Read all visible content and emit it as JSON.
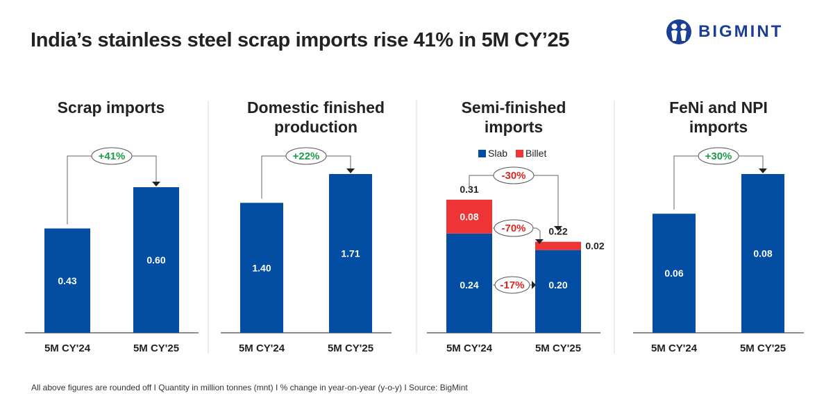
{
  "header": {
    "title": "India’s stainless steel scrap imports rise 41% in 5M CY’25",
    "brand": "BIGMINT"
  },
  "footer": "All above figures are rounded off  I  Quantity in million tonnes (mnt)  I  % change in year-on-year (y-o-y)  I  Source: BigMint",
  "colors": {
    "slab": "#034ea2",
    "billet": "#ee3434",
    "positive": "#1d9b4b",
    "negative": "#e02424"
  },
  "chart_data": [
    {
      "type": "bar",
      "title": "Scrap imports",
      "categories": [
        "5M CY'24",
        "5M CY'25"
      ],
      "values": [
        0.43,
        0.6
      ],
      "labels": [
        "0.43",
        "0.60"
      ],
      "change": "+41%",
      "unit": "mnt"
    },
    {
      "type": "bar",
      "title": "Domestic finished production",
      "title_lines": [
        "Domestic finished",
        "production"
      ],
      "categories": [
        "5M CY'24",
        "5M CY'25"
      ],
      "values": [
        1.4,
        1.71
      ],
      "labels": [
        "1.40",
        "1.71"
      ],
      "change": "+22%",
      "unit": "mnt"
    },
    {
      "type": "bar",
      "stacked": true,
      "title": "Semi-finished imports",
      "title_lines": [
        "Semi-finished",
        "imports"
      ],
      "categories": [
        "5M CY'24",
        "5M CY'25"
      ],
      "legend": [
        "Slab",
        "Billet"
      ],
      "series": [
        {
          "name": "Slab",
          "values": [
            0.24,
            0.2
          ],
          "labels": [
            "0.24",
            "0.20"
          ],
          "change": "-17%"
        },
        {
          "name": "Billet",
          "values": [
            0.08,
            0.02
          ],
          "labels": [
            "0.08",
            "0.02"
          ],
          "change": "-70%"
        }
      ],
      "totals": [
        0.31,
        0.22
      ],
      "total_labels": [
        "0.31",
        "0.22"
      ],
      "change": "-30%",
      "unit": "mnt"
    },
    {
      "type": "bar",
      "title": "FeNi and NPI imports",
      "title_lines": [
        "FeNi and NPI",
        "imports"
      ],
      "categories": [
        "5M CY'24",
        "5M CY'25"
      ],
      "values": [
        0.06,
        0.08
      ],
      "labels": [
        "0.06",
        "0.08"
      ],
      "change": "+30%",
      "unit": "mnt"
    }
  ]
}
